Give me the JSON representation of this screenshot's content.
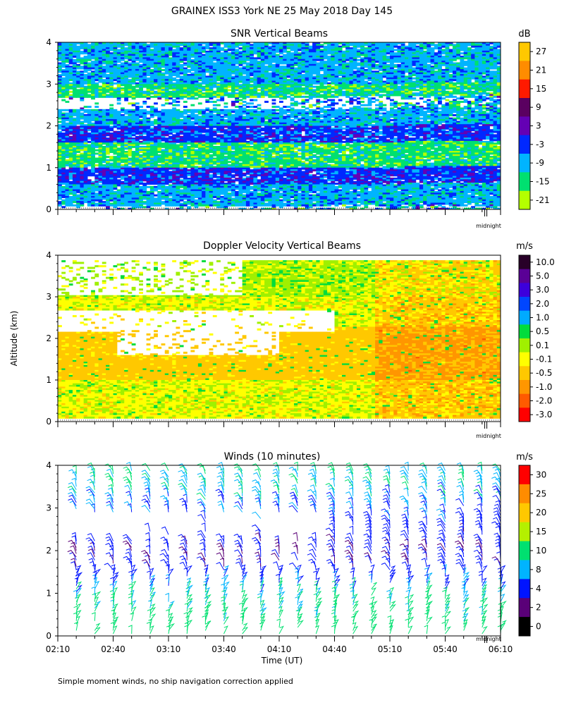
{
  "page": {
    "title": "GRAINEX ISS3 York NE  25 May 2018 Day 145",
    "ylabel": "Altitude (km)",
    "xlabel": "Time (UT)",
    "footnote": "Simple moment winds, no ship navigation correction applied",
    "midnight_label": "midnight"
  },
  "chart_data": [
    {
      "type": "heatmap",
      "title": "SNR Vertical Beams",
      "ylabel": "Altitude (km)",
      "ylim": [
        0,
        4
      ],
      "yticks": [
        "0",
        "1",
        "2",
        "3",
        "4"
      ],
      "x_range": [
        "02:10",
        "06:10"
      ],
      "colorbar": {
        "unit": "dB",
        "labels": [
          "27",
          "21",
          "15",
          "9",
          "3",
          "-3",
          "-9",
          "-15",
          "-21"
        ],
        "colors": [
          "#ffc800",
          "#ff8c00",
          "#ff1a00",
          "#5a0060",
          "#6400b4",
          "#0028ff",
          "#00b4ff",
          "#00e070",
          "#b4ff00"
        ]
      },
      "bands": [
        {
          "altitude_km": [
            0.1,
            0.6
          ],
          "snr_db": -9
        },
        {
          "altitude_km": [
            0.6,
            1.0
          ],
          "snr_db": -3
        },
        {
          "altitude_km": [
            1.0,
            1.6
          ],
          "snr_db": -15
        },
        {
          "altitude_km": [
            1.6,
            2.0
          ],
          "snr_db": -3
        },
        {
          "altitude_km": [
            2.0,
            2.4
          ],
          "snr_db": -9
        },
        {
          "altitude_km": [
            2.7,
            3.0
          ],
          "snr_db": -15
        },
        {
          "altitude_km": [
            3.0,
            4.0
          ],
          "snr_db": -9
        }
      ]
    },
    {
      "type": "heatmap",
      "title": "Doppler Velocity Vertical Beams",
      "ylabel": "Altitude (km)",
      "ylim": [
        0,
        4
      ],
      "yticks": [
        "0",
        "1",
        "2",
        "3",
        "4"
      ],
      "x_range": [
        "02:10",
        "06:10"
      ],
      "colorbar": {
        "unit": "m/s",
        "labels": [
          "10.0",
          "5.0",
          "3.0",
          "2.0",
          "1.0",
          "0.5",
          "0.1",
          "-0.1",
          "-0.5",
          "-1.0",
          "-2.0",
          "-3.0"
        ],
        "colors": [
          "#280028",
          "#5a0096",
          "#3c00dc",
          "#0046ff",
          "#00aaff",
          "#00dc3c",
          "#a0f000",
          "#ffff00",
          "#ffc800",
          "#ff9600",
          "#ff5a00",
          "#ff0000"
        ]
      },
      "bands": [
        {
          "altitude_km": [
            0.1,
            1.0
          ],
          "velocity_ms": -0.1
        },
        {
          "altitude_km": [
            1.0,
            2.3
          ],
          "velocity_ms": -0.5
        },
        {
          "altitude_km": [
            2.3,
            3.0
          ],
          "velocity_ms": -0.1
        },
        {
          "altitude_km": [
            3.0,
            3.9
          ],
          "velocity_ms": 0.1
        }
      ]
    },
    {
      "type": "scatter",
      "title": "Winds (10 minutes)",
      "ylabel": "Altitude (km)",
      "xlabel": "Time (UT)",
      "ylim": [
        0,
        4
      ],
      "yticks": [
        "0",
        "1",
        "2",
        "3",
        "4"
      ],
      "xticks": [
        "02:10",
        "02:40",
        "03:10",
        "03:40",
        "04:10",
        "04:40",
        "05:10",
        "05:40",
        "06:10"
      ],
      "colorbar": {
        "unit": "m/s",
        "labels": [
          "30",
          "25",
          "20",
          "15",
          "10",
          "8",
          "4",
          "2",
          "0"
        ],
        "colors": [
          "#ff0000",
          "#ff8c00",
          "#ffc800",
          "#b4f000",
          "#00e070",
          "#00b4ff",
          "#0014ff",
          "#5a0078",
          "#000000"
        ]
      },
      "profile_times_min": [
        10,
        20,
        30,
        40,
        50,
        60,
        70,
        80,
        90,
        100,
        110,
        120,
        130,
        140,
        150,
        160,
        170,
        180,
        190,
        200,
        210,
        220,
        230,
        240
      ],
      "mean_speed_ms": [
        {
          "altitude_km": 0.3,
          "speed": 12
        },
        {
          "altitude_km": 1.0,
          "speed": 10
        },
        {
          "altitude_km": 1.5,
          "speed": 6
        },
        {
          "altitude_km": 2.0,
          "speed": 4
        },
        {
          "altitude_km": 2.5,
          "speed": 6
        },
        {
          "altitude_km": 3.0,
          "speed": 8
        },
        {
          "altitude_km": 3.5,
          "speed": 10
        }
      ]
    }
  ]
}
